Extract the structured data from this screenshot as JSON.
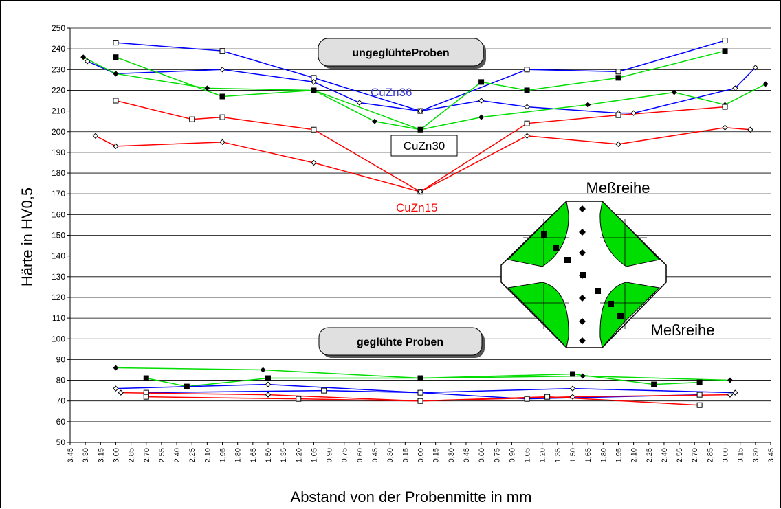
{
  "chart_data": {
    "type": "line",
    "ylabel": "Härte in HV0,5",
    "xlabel": "Abstand von der Probenmitte in mm",
    "ylim": [
      50,
      250
    ],
    "yticks": [
      "50",
      "60",
      "70",
      "80",
      "90",
      "100",
      "110",
      "120",
      "130",
      "140",
      "150",
      "160",
      "170",
      "180",
      "190",
      "200",
      "210",
      "220",
      "230",
      "240",
      "250"
    ],
    "xticks": [
      "3,45",
      "3,30",
      "3,15",
      "3,00",
      "2,85",
      "2,70",
      "2,55",
      "2,40",
      "2,25",
      "2,10",
      "1,95",
      "1,80",
      "1,65",
      "1,50",
      "1,35",
      "1,20",
      "1,05",
      "0,90",
      "0,75",
      "0,60",
      "0,45",
      "0,30",
      "0,15",
      "0,00",
      "0,15",
      "0,30",
      "0,45",
      "0,60",
      "0,75",
      "0,90",
      "1,05",
      "1,20",
      "1,35",
      "1,50",
      "1,65",
      "1,80",
      "1,95",
      "2,10",
      "2,25",
      "2,40",
      "2,55",
      "2,70",
      "2,85",
      "3,00",
      "3,15",
      "3,30",
      "3,45"
    ],
    "grid": true,
    "annotations": {
      "ungeglueht": "ungeglühteProben",
      "geglueht": "geglühte Proben",
      "cuzn36": "CuZn36",
      "cuzn30": "CuZn30",
      "cuzn15": "CuZn15",
      "messreihe_top": "Meßreihe",
      "messreihe_bottom": "Meßreihe"
    },
    "series": [
      {
        "color": "#0000ff",
        "marker": "open-square",
        "x": [
          -3.0,
          -1.95,
          -1.05,
          0,
          1.05,
          1.95,
          3.0
        ],
        "y": [
          243,
          239,
          226,
          210,
          230,
          229,
          244
        ]
      },
      {
        "color": "#0000ff",
        "marker": "open-diamond",
        "x": [
          -3.28,
          -3.0,
          -1.95,
          -1.05,
          -0.6,
          0,
          0.6,
          1.05,
          1.95,
          2.1,
          3.1,
          3.3
        ],
        "y": [
          234,
          228,
          230,
          224,
          214,
          210,
          215,
          212,
          209,
          209,
          221,
          231
        ]
      },
      {
        "color": "#00dd00",
        "marker": "filled-square",
        "x": [
          -3.0,
          -1.95,
          -1.05,
          0,
          0.6,
          1.05,
          1.95,
          3.0
        ],
        "y": [
          236,
          217,
          220,
          201,
          224,
          220,
          226,
          239
        ]
      },
      {
        "color": "#00dd00",
        "marker": "filled-diamond",
        "x": [
          -3.32,
          -3.0,
          -2.1,
          -1.05,
          -0.45,
          0,
          0.6,
          1.65,
          2.5,
          3.0,
          3.4
        ],
        "y": [
          236,
          228,
          221,
          220,
          205,
          201,
          207,
          213,
          219,
          213,
          223
        ]
      },
      {
        "color": "#ff0000",
        "marker": "open-square",
        "x": [
          -3.0,
          -2.25,
          -1.95,
          -1.05,
          0,
          1.05,
          1.95,
          3.0
        ],
        "y": [
          215,
          206,
          207,
          201,
          171,
          204,
          208,
          212
        ]
      },
      {
        "color": "#ff0000",
        "marker": "open-diamond",
        "x": [
          -3.2,
          -3.0,
          -1.95,
          -1.05,
          0,
          1.05,
          1.95,
          3.0,
          3.25
        ],
        "y": [
          198,
          193,
          195,
          185,
          171,
          198,
          194,
          202,
          201
        ]
      },
      {
        "color": "#00dd00",
        "marker": "filled-diamond",
        "x": [
          -3.0,
          -1.55,
          0,
          1.6,
          3.05
        ],
        "y": [
          86,
          85,
          81,
          82,
          80
        ]
      },
      {
        "color": "#00dd00",
        "marker": "filled-square",
        "x": [
          -2.7,
          -2.3,
          -1.5,
          0,
          1.5,
          2.3,
          2.75
        ],
        "y": [
          81,
          77,
          81,
          81,
          83,
          78,
          79
        ]
      },
      {
        "color": "#0000ff",
        "marker": "open-diamond",
        "x": [
          -3.0,
          -1.5,
          0,
          1.5,
          3.1
        ],
        "y": [
          76,
          78,
          74,
          76,
          74
        ]
      },
      {
        "color": "#0000ff",
        "marker": "open-square",
        "x": [
          -2.7,
          -0.95,
          0,
          1.05,
          2.75
        ],
        "y": [
          74,
          75,
          74,
          71,
          73
        ]
      },
      {
        "color": "#ff0000",
        "marker": "open-diamond",
        "x": [
          -2.95,
          -1.5,
          0,
          1.5,
          3.05
        ],
        "y": [
          74,
          73,
          70,
          72,
          73
        ]
      },
      {
        "color": "#ff0000",
        "marker": "open-square",
        "x": [
          -2.7,
          -1.2,
          0,
          1.25,
          2.75
        ],
        "y": [
          72,
          71,
          70,
          72,
          68
        ]
      }
    ],
    "inset": {
      "label_top": "Meßreihe",
      "label_bottom": "Meßreihe",
      "colors": {
        "fill": "#00dd00",
        "stroke": "#000000"
      }
    }
  }
}
